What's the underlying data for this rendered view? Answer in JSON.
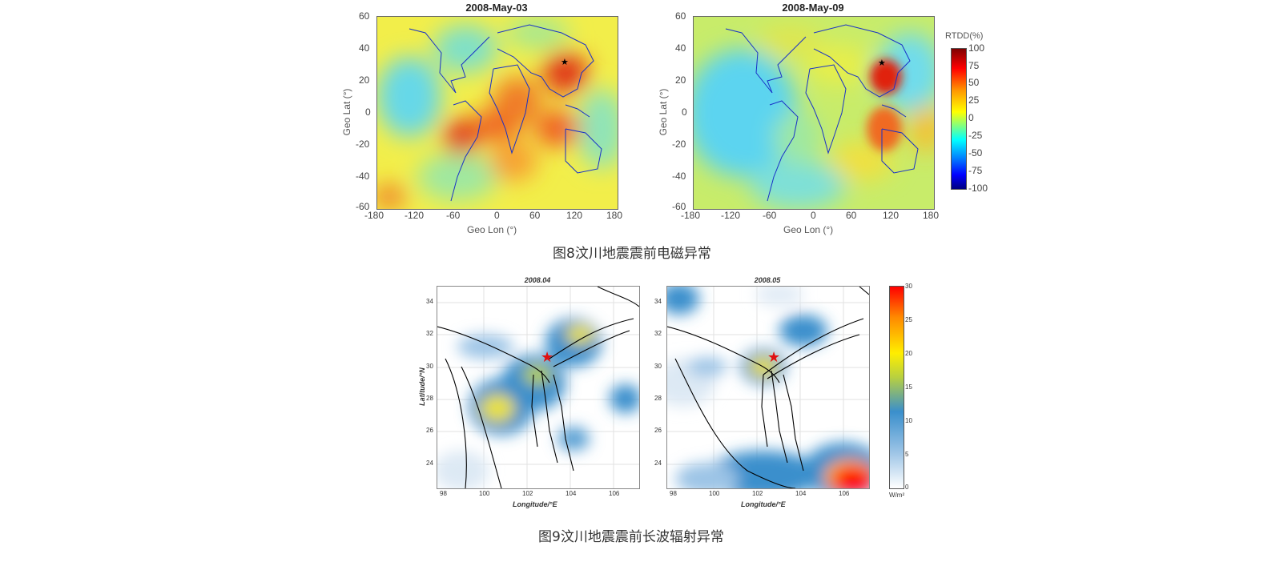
{
  "figure8": {
    "caption": "图8汶川地震震前电磁异常",
    "panels": [
      {
        "title": "2008-May-03"
      },
      {
        "title": "2008-May-09"
      }
    ],
    "xlabel": "Geo Lon (°)",
    "ylabel": "Geo Lat (°)",
    "xticks": [
      "-180",
      "-120",
      "-60",
      "0",
      "60",
      "120",
      "180"
    ],
    "yticks": [
      "60",
      "40",
      "20",
      "0",
      "-20",
      "-40",
      "-60"
    ],
    "colorbar": {
      "label": "RTDD(%)",
      "ticks": [
        "100",
        "75",
        "50",
        "25",
        "0",
        "-25",
        "-50",
        "-75",
        "-100"
      ],
      "colors": [
        "#7f0000",
        "#ff0000",
        "#ff9900",
        "#ffff00",
        "#80ff80",
        "#00ffff",
        "#0080ff",
        "#0000ff",
        "#00007f"
      ]
    },
    "epicenter_marker": "black-star"
  },
  "figure9": {
    "caption": "图9汶川地震震前长波辐射异常",
    "panels": [
      {
        "title": "2008.04"
      },
      {
        "title": "2008.05"
      }
    ],
    "xlabel": "Longitude/°E",
    "ylabel": "Latitude/°N",
    "xticks": [
      "98",
      "100",
      "102",
      "104",
      "106"
    ],
    "yticks": [
      "34",
      "32",
      "30",
      "28",
      "26",
      "24"
    ],
    "colorbar": {
      "unit": "W/m²",
      "ticks": [
        "30",
        "25",
        "20",
        "15",
        "10",
        "5",
        "0"
      ],
      "colors": [
        "#ff0000",
        "#ff8800",
        "#ffee00",
        "#b8d040",
        "#3a8fcc",
        "#9cc4e6",
        "#ffffff"
      ]
    },
    "epicenter_marker": "red-star"
  },
  "chart_data": [
    {
      "type": "heatmap",
      "title": "2008-May-03",
      "xlabel": "Geo Lon (°)",
      "ylabel": "Geo Lat (°)",
      "xlim": [
        -180,
        180
      ],
      "ylim": [
        -60,
        60
      ],
      "colorbar_range": [
        -100,
        100
      ],
      "grid": false,
      "features": "world coastlines; strong positive anomaly (50 to 100%) near epicenter around lon 103, lat 31; positive anomalies over South America and Africa"
    },
    {
      "type": "heatmap",
      "title": "2008-May-09",
      "xlabel": "Geo Lon (°)",
      "ylabel": "Geo Lat (°)",
      "xlim": [
        -180,
        180
      ],
      "ylim": [
        -60,
        60
      ],
      "colorbar_range": [
        -100,
        100
      ],
      "grid": false,
      "features": "strong positive anomaly (75 to 100%) near epicenter around lon 103, lat 31; negative anomalies over Pacific"
    },
    {
      "type": "heatmap",
      "title": "2008.04",
      "xlabel": "Longitude/°E",
      "ylabel": "Latitude/°N",
      "xlim": [
        97.5,
        107.5
      ],
      "ylim": [
        22.5,
        35
      ],
      "colorbar_range": [
        0,
        30
      ],
      "grid": true
    },
    {
      "type": "heatmap",
      "title": "2008.05",
      "xlabel": "Longitude/°E",
      "ylabel": "Latitude/°N",
      "xlim": [
        97.5,
        107.5
      ],
      "ylim": [
        22.5,
        35
      ],
      "colorbar_range": [
        0,
        30
      ],
      "grid": true
    }
  ]
}
